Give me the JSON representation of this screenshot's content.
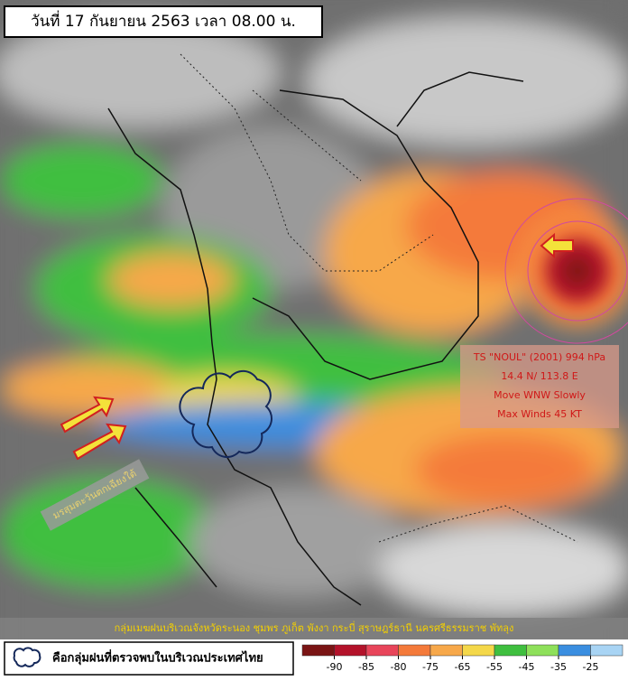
{
  "header": {
    "title": "วันที่ 17 กันยายน 2563 เวลา 08.00 น."
  },
  "storm": {
    "lines": [
      "TS \"NOUL\" (2001) 994 hPa",
      "14.4 N/ 113.8 E",
      "Move WNW Slowly",
      "Max Winds 45 KT"
    ]
  },
  "monsoon_label": "มรสุมตะวันตกเฉียงใต้",
  "caption": "กลุ่มเมฆฝนบริเวณจังหวัดระนอง ชุมพร ภูเก็ต พังงา กระบี่ สุราษฎร์ธานี นครศรีธรรมราช พัทลุง",
  "legend": {
    "label": "คือกลุ่มฝนที่ตรวจพบในบริเวณประเทศไทย"
  },
  "color_scale": {
    "ticks": [
      -90,
      -85,
      -80,
      -75,
      -65,
      -55,
      -45,
      -35,
      -25
    ],
    "colors": [
      "#7a1414",
      "#b3122a",
      "#e8455a",
      "#f47a3a",
      "#f7a84a",
      "#f4d84a",
      "#3fbf3f",
      "#8ee05a",
      "#3a8ee0",
      "#a8d4f4"
    ]
  }
}
